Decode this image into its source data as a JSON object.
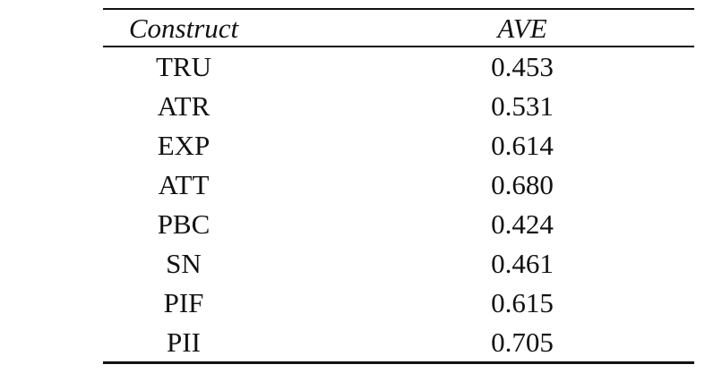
{
  "table": {
    "header": [
      "Construct",
      "AVE"
    ],
    "rows": [
      [
        "TRU",
        "0.453"
      ],
      [
        "ATR",
        "0.531"
      ],
      [
        "EXP",
        "0.614"
      ],
      [
        "ATT",
        "0.680"
      ],
      [
        "PBC",
        "0.424"
      ],
      [
        "SN",
        "0.461"
      ],
      [
        "PIF",
        "0.615"
      ],
      [
        "PII",
        "0.705"
      ]
    ]
  }
}
